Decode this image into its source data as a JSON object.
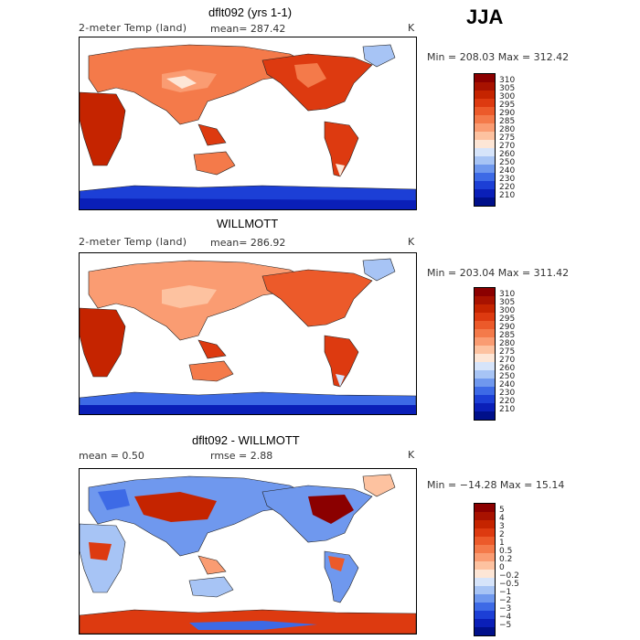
{
  "season": "JJA",
  "panels": [
    {
      "title": "dflt092 (yrs 1-1)",
      "left_label": "2-meter Temp (land)",
      "stat1": "mean= 287.42",
      "stat2": "",
      "units": "K",
      "minmax": "Min = 208.03 Max = 312.42",
      "levels": [
        "310",
        "305",
        "300",
        "295",
        "290",
        "285",
        "280",
        "275",
        "270",
        "260",
        "250",
        "240",
        "230",
        "220",
        "210"
      ],
      "colors": [
        "#8b0000",
        "#a81200",
        "#c52400",
        "#dd3a10",
        "#ec5a2a",
        "#f47a4a",
        "#fa9c72",
        "#fdc2a0",
        "#fde6d6",
        "#d6e4fa",
        "#a7c4f5",
        "#6f98ee",
        "#3d6ae6",
        "#1c3fd6",
        "#0a1fb8",
        "#00108a"
      ]
    },
    {
      "title": "WILLMOTT",
      "left_label": "2-meter Temp (land)",
      "stat1": "mean= 286.92",
      "stat2": "",
      "units": "K",
      "minmax": "Min = 203.04 Max = 311.42",
      "levels": [
        "310",
        "305",
        "300",
        "295",
        "290",
        "285",
        "280",
        "275",
        "270",
        "260",
        "250",
        "240",
        "230",
        "220",
        "210"
      ],
      "colors": [
        "#8b0000",
        "#a81200",
        "#c52400",
        "#dd3a10",
        "#ec5a2a",
        "#f47a4a",
        "#fa9c72",
        "#fdc2a0",
        "#fde6d6",
        "#d6e4fa",
        "#a7c4f5",
        "#6f98ee",
        "#3d6ae6",
        "#1c3fd6",
        "#0a1fb8",
        "#00108a"
      ]
    },
    {
      "title": "dflt092 - WILLMOTT",
      "left_label": "mean =    0.50",
      "stat1": "rmse =    2.88",
      "stat2": "",
      "units": "K",
      "minmax": "Min = −14.28 Max =   15.14",
      "levels": [
        "5",
        "4",
        "3",
        "2",
        "1",
        "0.5",
        "0.2",
        "0",
        "−0.2",
        "−0.5",
        "−1",
        "−2",
        "−3",
        "−4",
        "−5"
      ],
      "colors": [
        "#8b0000",
        "#a81200",
        "#c52400",
        "#dd3a10",
        "#ec5a2a",
        "#f47a4a",
        "#fa9c72",
        "#fdc2a0",
        "#fde6d6",
        "#d6e4fa",
        "#a7c4f5",
        "#6f98ee",
        "#3d6ae6",
        "#1c3fd6",
        "#0a1fb8",
        "#00108a"
      ]
    }
  ]
}
